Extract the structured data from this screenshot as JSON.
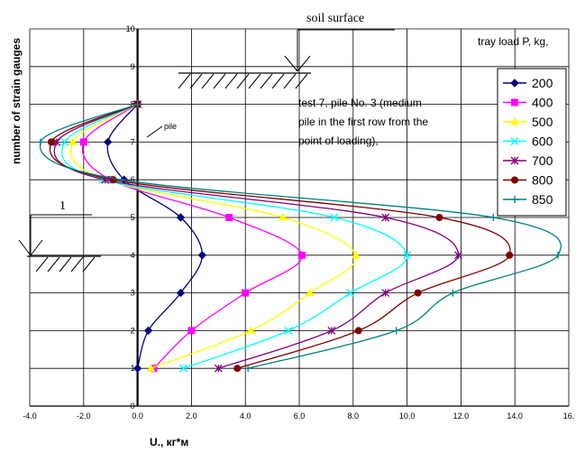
{
  "chart_data": {
    "type": "line",
    "title": "",
    "xlabel": "U., кг*м",
    "ylabel": "number of strain gauges",
    "xlim": [
      -4,
      16
    ],
    "ylim": [
      0,
      10
    ],
    "x_ticks": [
      "-4.0",
      "-2.0",
      "0.0",
      "2.0",
      "4.0",
      "6.0",
      "8.0",
      "10.0",
      "12.0",
      "14.0",
      "16."
    ],
    "y_ticks": [
      "0",
      "1",
      "2",
      "3",
      "4",
      "5",
      "6",
      "7",
      "8",
      "9",
      "10"
    ],
    "grid": true,
    "legend_title": "tray load P, kg,",
    "legend_position": "right",
    "series": [
      {
        "name": "200",
        "color": "#000080",
        "marker": "diamond",
        "y": [
          1,
          2,
          3,
          4,
          5,
          6,
          7,
          8
        ],
        "x": [
          0,
          0.4,
          1.6,
          2.4,
          1.6,
          -0.5,
          -1.1,
          0
        ]
      },
      {
        "name": "400",
        "color": "#ff00ff",
        "marker": "square",
        "y": [
          1,
          2,
          3,
          4,
          5,
          6,
          7,
          8
        ],
        "x": [
          0.6,
          2.0,
          4.0,
          6.1,
          3.4,
          -1.0,
          -2.0,
          0
        ]
      },
      {
        "name": "500",
        "color": "#ffff00",
        "marker": "triangle",
        "y": [
          1,
          2,
          3,
          4,
          5,
          6,
          7,
          8
        ],
        "x": [
          0.5,
          4.2,
          6.4,
          8.1,
          5.4,
          -1.2,
          -2.4,
          0
        ]
      },
      {
        "name": "600",
        "color": "#00ffff",
        "marker": "x",
        "y": [
          1,
          2,
          3,
          4,
          5,
          6,
          7,
          8
        ],
        "x": [
          1.7,
          5.6,
          7.9,
          10.0,
          7.3,
          -1.3,
          -2.7,
          0
        ]
      },
      {
        "name": "700",
        "color": "#800080",
        "marker": "star",
        "y": [
          1,
          2,
          3,
          4,
          5,
          6,
          7,
          8
        ],
        "x": [
          3.0,
          7.2,
          9.2,
          11.9,
          9.2,
          -1.2,
          -3.0,
          0
        ]
      },
      {
        "name": "800",
        "color": "#800000",
        "marker": "circle",
        "y": [
          1,
          2,
          3,
          4,
          5,
          6,
          7,
          8
        ],
        "x": [
          3.7,
          8.2,
          10.4,
          13.8,
          11.2,
          -0.9,
          -3.2,
          0
        ]
      },
      {
        "name": "850",
        "color": "#008080",
        "marker": "plus",
        "y": [
          1,
          2,
          3,
          4,
          5,
          6,
          7,
          8
        ],
        "x": [
          4.1,
          9.6,
          11.7,
          15.6,
          13.2,
          -0.6,
          -3.6,
          0
        ]
      }
    ],
    "annotations": {
      "soil_surface": "soil surface",
      "test_note": [
        "test 7, pile No. 3 (medium",
        "pile in the first row from the",
        "point of loading),"
      ],
      "pile_label": "pile",
      "section_label": "1"
    }
  }
}
